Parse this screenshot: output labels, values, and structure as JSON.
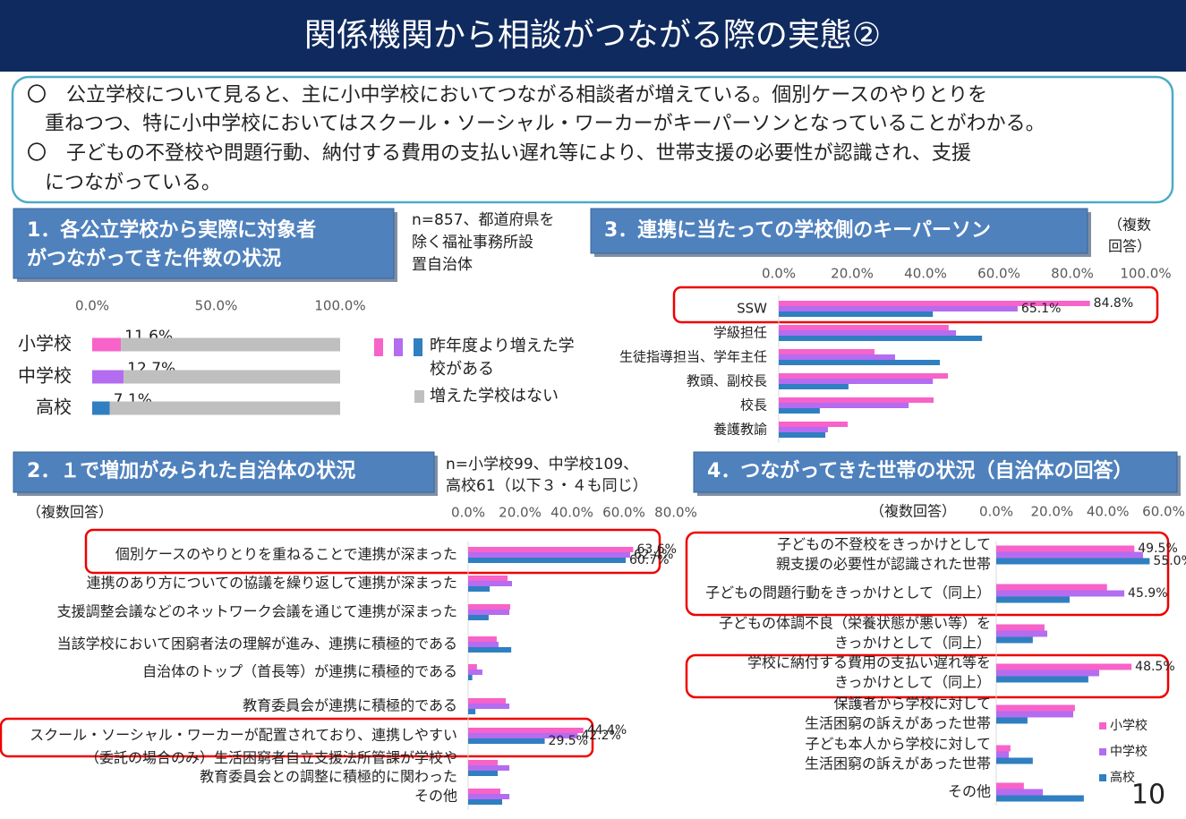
{
  "header": {
    "title": "関係機関から相談がつながる際の実態②"
  },
  "summary": [
    "〇　公立学校について見ると、主に小中学校においてつながる相談者が増えている。個別ケースのやりとりを",
    "重ねつつ、特に小中学校においてはスクール・ソーシャル・ワーカーがキーパーソンとなっていることがわかる。",
    "〇　子どもの不登校や問題行動、納付する費用の支払い遅れ等により、世帯支援の必要性が認識され、支援",
    "につながっている。"
  ],
  "page_number": "10",
  "chart_data": [
    {
      "type": "stacked_hbar",
      "title": [
        "1．各公立学校から実際に対象者",
        "がつながってきた件数の状況"
      ],
      "note": [
        "n=857、都道府県を",
        "除く福祉事務所設",
        "置自治体"
      ],
      "categories": [
        "小学校",
        "中学校",
        "高校"
      ],
      "xlim": [
        0,
        100
      ],
      "xticks": [
        {
          "value": 0,
          "label": "0.0%"
        },
        {
          "value": 50,
          "label": "50.0%"
        },
        {
          "value": 100,
          "label": "100.0%"
        }
      ],
      "series": [
        {
          "name": [
            "昨年度より増えた学",
            "校がある"
          ],
          "colors": [
            "#f763c9",
            "#b46cf0",
            "#2f7fc1"
          ],
          "values": [
            11.6,
            12.7,
            7.1
          ],
          "value_labels": [
            "11.6%",
            "12.7%",
            "7.1%"
          ]
        },
        {
          "name": [
            "増えた学校はない"
          ],
          "color": "#bfbfbf",
          "values": [
            88.4,
            87.3,
            92.9
          ]
        }
      ]
    },
    {
      "type": "hbar",
      "title": [
        "2．１で増加がみられた自治体の状況"
      ],
      "note": [
        "n=小学校99、中学校109、",
        "高校61（以下３・４も同じ）"
      ],
      "subtitle": [
        "（複数回答）"
      ],
      "categories": [
        [
          "個別ケースのやりとりを重ねることで連携が深まった"
        ],
        [
          "連携のあり方についての協議を繰り返して連携が深まった"
        ],
        [
          "支援調整会議などのネットワーク会議を通じて連携が深まった"
        ],
        [
          "当該学校において困窮者法の理解が進み、連携に積極的である"
        ],
        [
          "自治体のトップ（首長等）が連携に積極的である"
        ],
        [
          "教育委員会が連携に積極的である"
        ],
        [
          "スクール・ソーシャル・ワーカーが配置されており、連携しやすい"
        ],
        [
          "（委託の場合のみ）生活困窮者自立支援法所管課が学校や",
          "教育委員会との調整に積極的に関わった"
        ],
        [
          "その他"
        ]
      ],
      "xlim": [
        0,
        80
      ],
      "xticks": [
        {
          "value": 0,
          "label": "0.0%"
        },
        {
          "value": 20,
          "label": "20.0%"
        },
        {
          "value": 40,
          "label": "40.0%"
        },
        {
          "value": 60,
          "label": "60.0%"
        },
        {
          "value": 80,
          "label": "80.0%"
        }
      ],
      "series": [
        {
          "color": "#f763c9",
          "values": [
            63.6,
            15.2,
            16.2,
            11,
            3.4,
            14.5,
            44.4,
            11.4,
            12.4
          ],
          "value_labels": [
            "63.6%",
            null,
            null,
            null,
            null,
            null,
            "44.4%",
            null,
            null
          ]
        },
        {
          "color": "#b46cf0",
          "values": [
            62.4,
            16.9,
            15.9,
            11.7,
            5.5,
            15.9,
            42.2,
            15.9,
            15.9
          ],
          "value_labels": [
            "62.4%",
            null,
            null,
            null,
            null,
            null,
            "42.2%",
            null,
            null
          ]
        },
        {
          "color": "#2f7fc1",
          "values": [
            60.7,
            8.3,
            7.9,
            16.6,
            1.6,
            2.8,
            29.5,
            11.4,
            13.1
          ],
          "value_labels": [
            "60.7%",
            null,
            null,
            null,
            null,
            null,
            "29.5%",
            null,
            null
          ]
        }
      ]
    },
    {
      "type": "hbar",
      "title": [
        "3．連携に当たっての学校側のキーパーソン"
      ],
      "subtitle": [
        "（複数",
        "回答）"
      ],
      "categories": [
        [
          "SSW"
        ],
        [
          "学級担任"
        ],
        [
          "生徒指導担当、学年主任"
        ],
        [
          "教頭、副校長"
        ],
        [
          "校長"
        ],
        [
          "養護教諭"
        ]
      ],
      "xlim": [
        0,
        100
      ],
      "xticks": [
        {
          "value": 0,
          "label": "0.0%"
        },
        {
          "value": 20,
          "label": "20.0%"
        },
        {
          "value": 40,
          "label": "40.0%"
        },
        {
          "value": 60,
          "label": "60.0%"
        },
        {
          "value": 80,
          "label": "80.0%"
        },
        {
          "value": 100,
          "label": "100.0%"
        }
      ],
      "series": [
        {
          "color": "#f763c9",
          "values": [
            84.8,
            46.3,
            26.1,
            46.1,
            42.2,
            18.8
          ],
          "value_labels": [
            "84.8%",
            null,
            null,
            null,
            null,
            null
          ]
        },
        {
          "color": "#b46cf0",
          "values": [
            65.1,
            48.3,
            31.7,
            42,
            35.4,
            13.4
          ],
          "value_labels": [
            "65.1%",
            null,
            null,
            null,
            null,
            null
          ]
        },
        {
          "color": "#2f7fc1",
          "values": [
            42,
            55.4,
            43.9,
            19,
            11.2,
            12.7
          ]
        }
      ]
    },
    {
      "type": "hbar",
      "title": [
        "4．つながってきた世帯の状況（自治体の回答）"
      ],
      "subtitle": [
        "（複数回答）"
      ],
      "categories": [
        [
          "子どもの不登校をきっかけとして",
          "親支援の必要性が認識された世帯"
        ],
        [
          "子どもの問題行動をきっかけとして（同上）"
        ],
        [
          "子どもの体調不良（栄養状態が悪い等）を",
          "きっかけとして（同上）"
        ],
        [
          "学校に納付する費用の支払い遅れ等を",
          "きっかけとして（同上）"
        ],
        [
          "保護者から学校に対して",
          "生活困窮の訴えがあった世帯"
        ],
        [
          "子ども本人から学校に対して",
          "生活困窮の訴えがあった世帯"
        ],
        [
          "その他"
        ]
      ],
      "xlim": [
        0,
        60
      ],
      "xticks": [
        {
          "value": 0,
          "label": "0.0%"
        },
        {
          "value": 20,
          "label": "20.0%"
        },
        {
          "value": 40,
          "label": "40.0%"
        },
        {
          "value": 60,
          "label": "60.0%"
        }
      ],
      "legend": "bottom-right",
      "series": [
        {
          "name": "小学校",
          "color": "#f763c9",
          "values": [
            49.5,
            39.7,
            17.3,
            48.5,
            28.2,
            5.1,
            9.9
          ],
          "value_labels": [
            "49.5%",
            null,
            null,
            "48.5%",
            null,
            null,
            null
          ]
        },
        {
          "name": "中学校",
          "color": "#b46cf0",
          "values": [
            52.6,
            45.9,
            18.3,
            36.9,
            27.6,
            4.5,
            16.7
          ],
          "value_labels": [
            null,
            "45.9%",
            null,
            null,
            null,
            null,
            null
          ]
        },
        {
          "name": "高校",
          "color": "#2f7fc1",
          "values": [
            55.0,
            26.3,
            13.1,
            33,
            11.2,
            13.1,
            31.4
          ],
          "value_labels": [
            "55.0%",
            null,
            null,
            null,
            null,
            null,
            null
          ]
        }
      ]
    }
  ]
}
